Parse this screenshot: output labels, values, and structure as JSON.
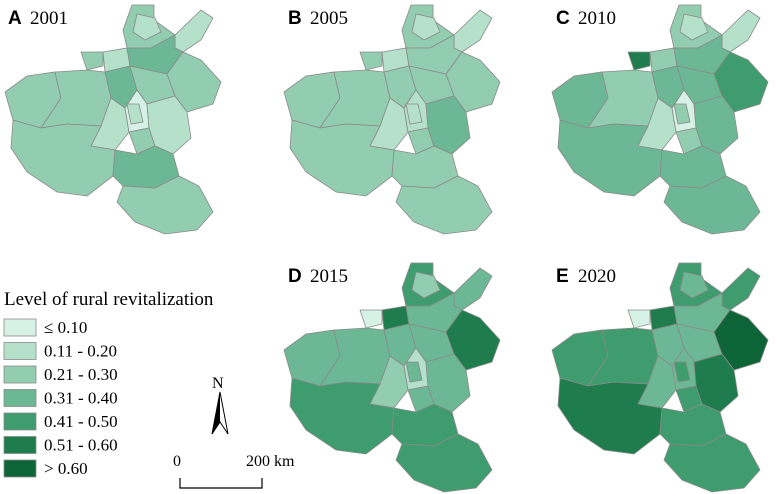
{
  "panels": [
    {
      "letter": "A",
      "year": "2001",
      "levels": [
        2,
        1,
        2,
        1,
        1,
        3,
        2,
        2,
        3,
        2,
        2,
        1,
        0,
        2,
        1,
        2,
        3,
        2,
        1
      ]
    },
    {
      "letter": "B",
      "year": "2005",
      "levels": [
        2,
        1,
        2,
        1,
        1,
        2,
        2,
        2,
        2,
        2,
        2,
        1,
        1,
        2,
        3,
        2,
        2,
        2,
        1
      ]
    },
    {
      "letter": "C",
      "year": "2010",
      "levels": [
        2,
        1,
        5,
        1,
        2,
        3,
        3,
        2,
        3,
        3,
        4,
        1,
        0,
        2,
        3,
        3,
        3,
        3,
        2
      ]
    },
    {
      "letter": "D",
      "year": "2015",
      "levels": [
        4,
        2,
        0,
        3,
        5,
        3,
        3,
        3,
        3,
        3,
        5,
        2,
        1,
        3,
        3,
        4,
        4,
        4,
        3
      ]
    },
    {
      "letter": "E",
      "year": "2020",
      "levels": [
        4,
        3,
        0,
        4,
        5,
        3,
        4,
        4,
        3,
        3,
        6,
        3,
        3,
        4,
        5,
        5,
        4,
        4,
        4
      ]
    }
  ],
  "legend": {
    "title": "Level of rural revitalization",
    "classes": [
      {
        "label": "≤ 0.10",
        "color": "#d6f2e6"
      },
      {
        "label": "0.11 - 0.20",
        "color": "#b5e0ca"
      },
      {
        "label": "0.21 - 0.30",
        "color": "#93cdb0"
      },
      {
        "label": "0.31 - 0.40",
        "color": "#6db894"
      },
      {
        "label": "0.41 - 0.50",
        "color": "#3f9c6e"
      },
      {
        "label": "0.51 - 0.60",
        "color": "#1f7c4d"
      },
      {
        "label": "> 0.60",
        "color": "#0d6436"
      }
    ]
  },
  "north_arrow": {
    "label": "N"
  },
  "scale_bar": {
    "start_label": "0",
    "end_label": "200 km"
  }
}
